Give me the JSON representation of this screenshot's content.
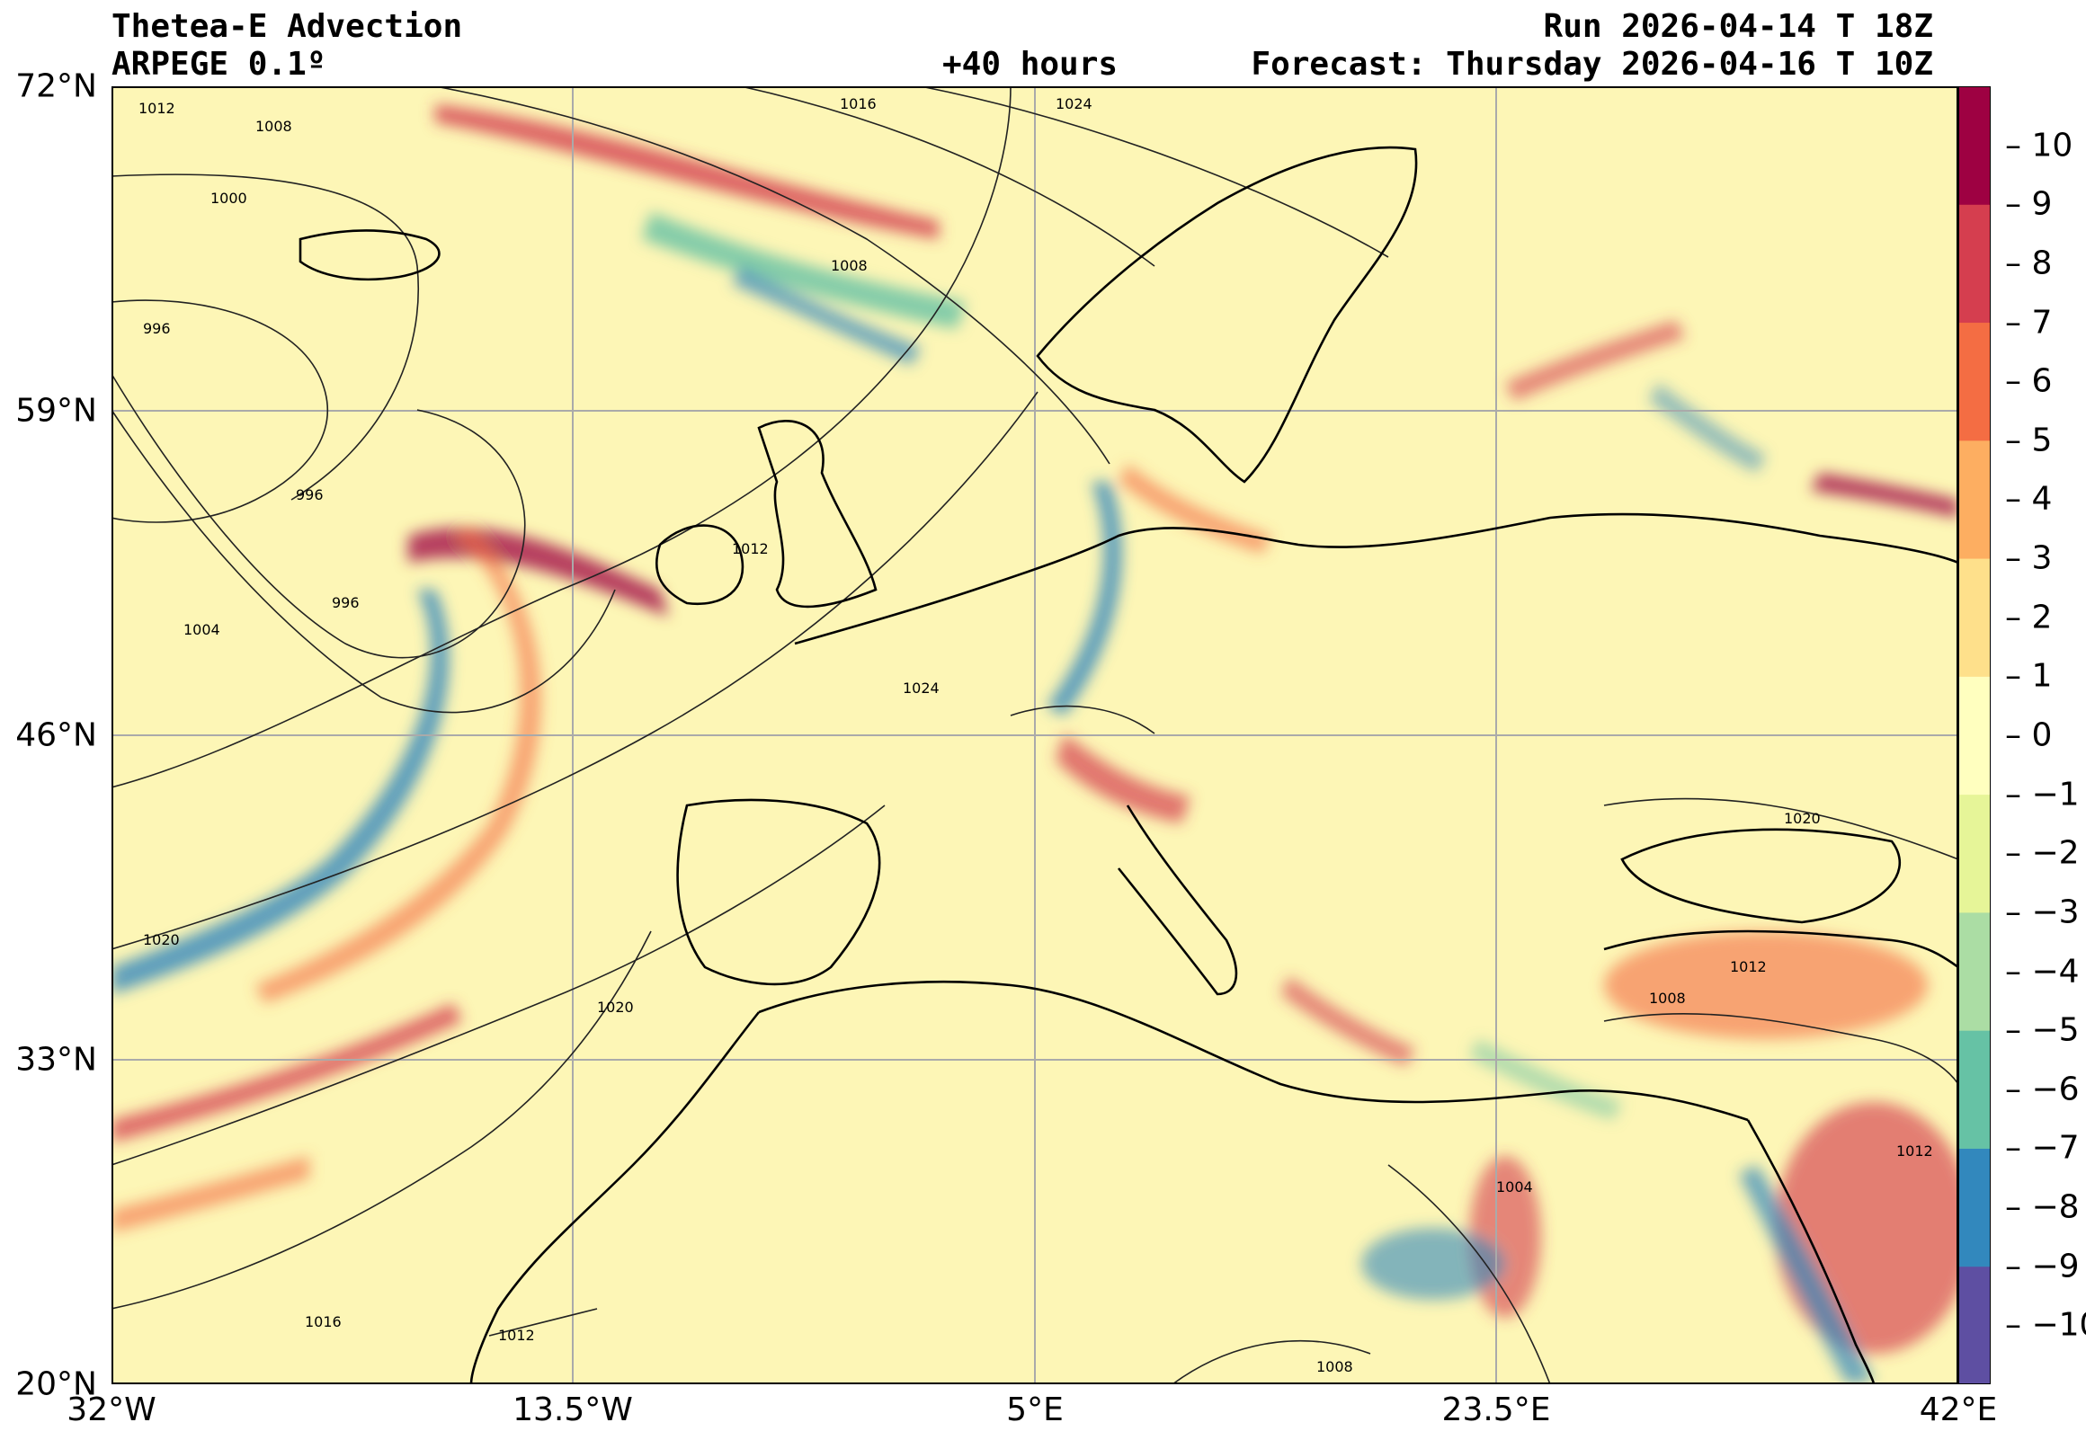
{
  "title": {
    "line1": "Thetea-E Advection",
    "line2": "ARPEGE 0.1º",
    "run": "Run 2026-04-14 T 18Z",
    "lead": "+40 hours",
    "forecast": "Forecast: Thursday 2026-04-16 T 10Z"
  },
  "axes": {
    "lat_labels": [
      "72°N",
      "59°N",
      "46°N",
      "33°N",
      "20°N"
    ],
    "lon_labels": [
      "32°W",
      "13.5°W",
      "5°E",
      "23.5°E",
      "42°E"
    ],
    "lat_range": [
      20,
      72
    ],
    "lon_range": [
      -32,
      42
    ],
    "grid": true
  },
  "colorbar": {
    "ticks": [
      "10",
      "9",
      "8",
      "7",
      "6",
      "5",
      "4",
      "3",
      "2",
      "1",
      "0",
      "−1",
      "−2",
      "−3",
      "−4",
      "−5",
      "−6",
      "−7",
      "−8",
      "−9",
      "−10"
    ],
    "range": [
      -11,
      11
    ],
    "colors": [
      "#5e4fa2",
      "#3288bd",
      "#66c2a5",
      "#abdda4",
      "#e6f598",
      "#ffffbf",
      "#fee08b",
      "#fdae61",
      "#f46d43",
      "#d53e4f",
      "#9e0142"
    ]
  },
  "isobar_labels": [
    "1012",
    "1008",
    "1016",
    "1024",
    "1000",
    "1008",
    "996",
    "996",
    "996",
    "1012",
    "1004",
    "1024",
    "1020",
    "1020",
    "1020",
    "1008",
    "1012",
    "1012",
    "1004",
    "1016",
    "1012",
    "1008"
  ],
  "colors": {
    "background_field": "#fdf6b6",
    "coast": "#000000",
    "isobar": "#222222",
    "grid": "#aaaaaa"
  }
}
